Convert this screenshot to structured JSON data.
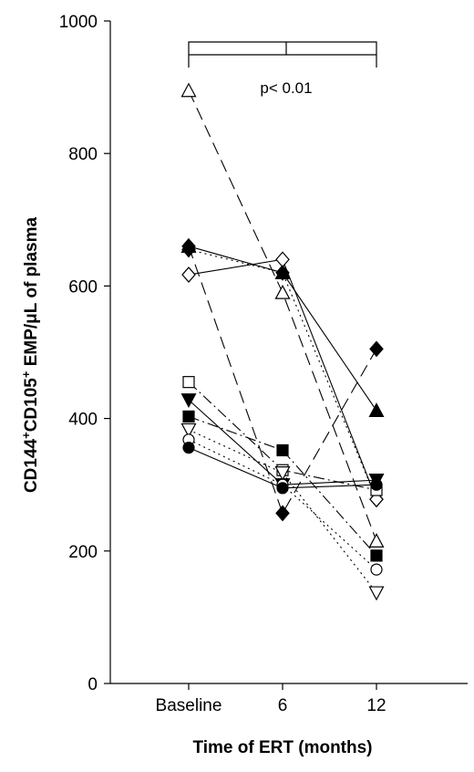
{
  "chart_data": {
    "type": "line",
    "xlabel": "Time of ERT (months)",
    "ylabel": {
      "parts": [
        {
          "text": "CD144",
          "sup": false
        },
        {
          "text": "+",
          "sup": true
        },
        {
          "text": "CD105",
          "sup": false
        },
        {
          "text": "+",
          "sup": true
        },
        {
          "text": " EMP/",
          "sup": false
        },
        {
          "text": "μ",
          "sup": false
        },
        {
          "text": "L of plasma",
          "sup": false
        }
      ]
    },
    "categories": [
      "Baseline",
      "6",
      "12"
    ],
    "ylim": [
      0,
      1000
    ],
    "yticks": [
      0,
      200,
      400,
      600,
      800,
      1000
    ],
    "annotation": "p< 0.01",
    "series": [
      {
        "marker": "triangle-up-open",
        "dash": "long",
        "values": [
          895,
          590,
          215
        ]
      },
      {
        "marker": "diamond-filled",
        "dash": "dotted",
        "values": [
          655,
          620,
          278
        ]
      },
      {
        "marker": "diamond-open",
        "dash": "solid",
        "values": [
          617,
          640,
          278
        ]
      },
      {
        "marker": "triangle-up-filled",
        "dash": "solid",
        "values": [
          660,
          620,
          412
        ]
      },
      {
        "marker": "diamond-filled",
        "dash": "long",
        "values": [
          660,
          257,
          505
        ]
      },
      {
        "marker": "square-open",
        "dash": "dashdot",
        "values": [
          455,
          322,
          292
        ]
      },
      {
        "marker": "triangle-down-filled",
        "dash": "solid",
        "values": [
          428,
          300,
          307
        ]
      },
      {
        "marker": "square-filled",
        "dash": "dashdot",
        "values": [
          403,
          352,
          193
        ]
      },
      {
        "marker": "triangle-down-open",
        "dash": "dotted",
        "values": [
          383,
          318,
          137
        ]
      },
      {
        "marker": "circle-open",
        "dash": "dotted",
        "values": [
          368,
          300,
          172
        ]
      },
      {
        "marker": "circle-filled",
        "dash": "solid",
        "values": [
          356,
          295,
          300
        ]
      }
    ]
  }
}
